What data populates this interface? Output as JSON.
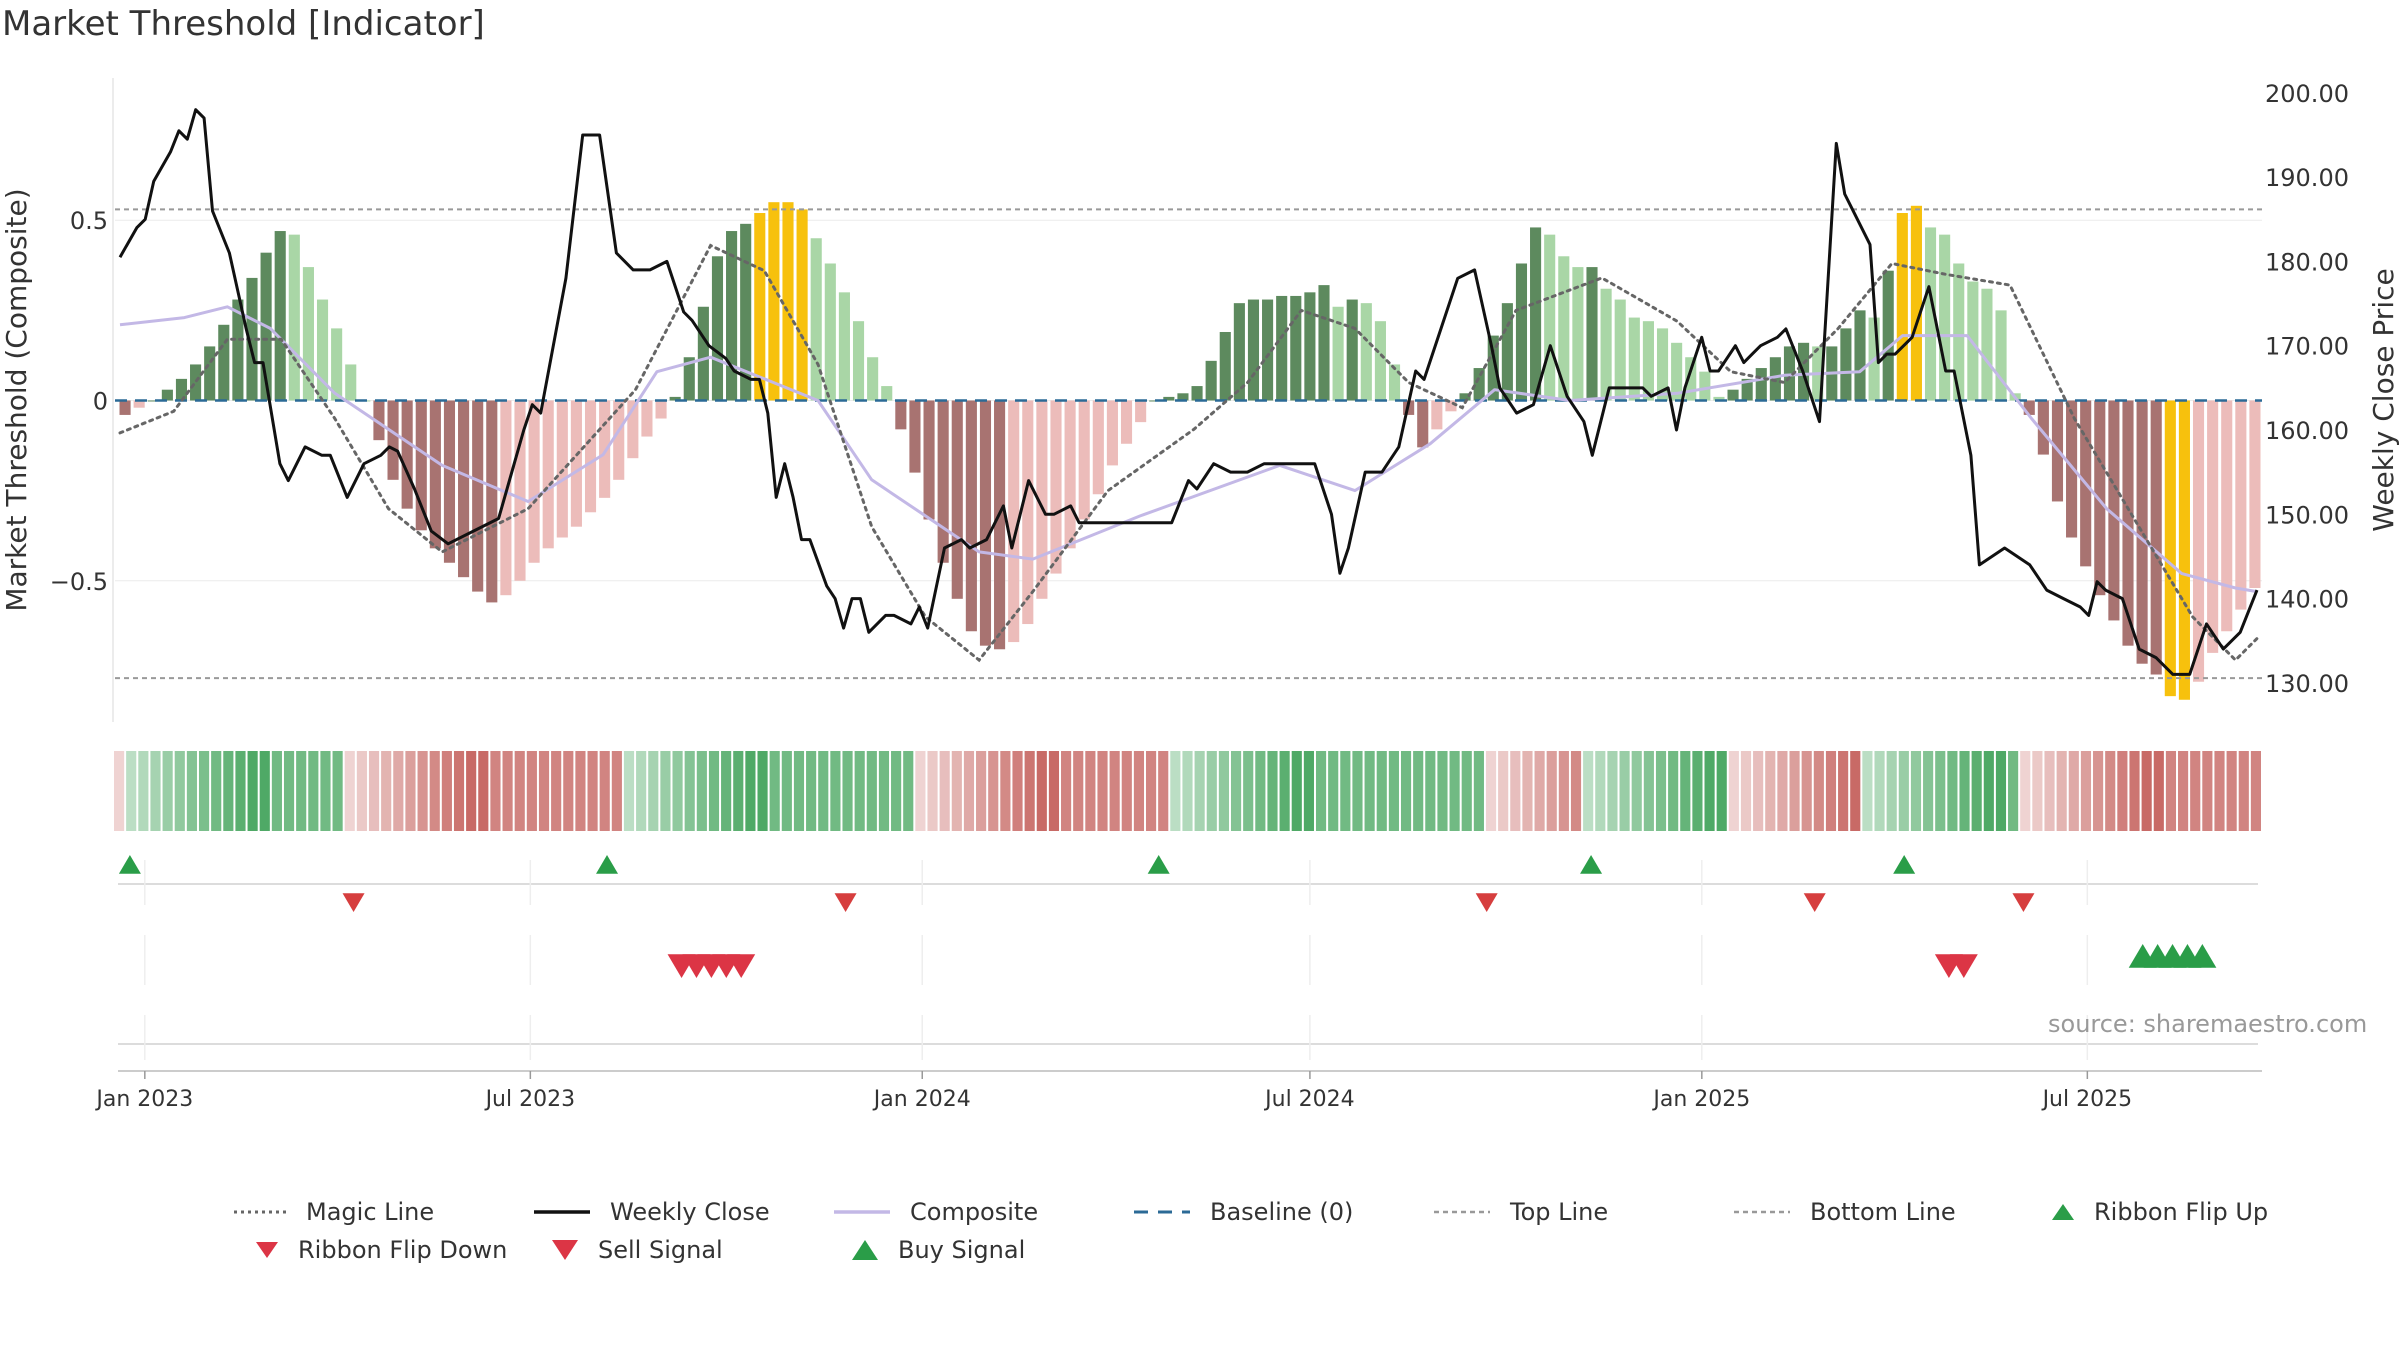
{
  "title": "Market Threshold [Indicator]",
  "source": "source: sharemaestro.com",
  "colors": {
    "up_strong": "#5d8a5e",
    "up_light": "#a9d6a6",
    "down_strong": "#a87371",
    "down_light": "#ecbcba",
    "extreme": "#f7c10d",
    "close": "#111111",
    "composite": "#c3b8e6",
    "magic": "#666666",
    "baseline": "#2b6a96",
    "ref": "#999999",
    "buy": "#2a9d48",
    "sell": "#dc3545"
  },
  "chart_data": {
    "type": "bar+line",
    "x_range": [
      "2022-12-18",
      "2025-09-21"
    ],
    "x_ticks": [
      "Jan 2023",
      "Jul 2023",
      "Jan 2024",
      "Jul 2024",
      "Jan 2025",
      "Jul 2025"
    ],
    "left_axis": {
      "label": "Market Threshold (Composite)",
      "ticks": [
        "0.5",
        "0",
        "−0.5"
      ],
      "range": [
        -0.9,
        0.9
      ]
    },
    "right_axis": {
      "label": "Weekly Close Price",
      "ticks": [
        "200.00",
        "190.00",
        "180.00",
        "170.00",
        "160.00",
        "150.00",
        "140.00",
        "130.00"
      ],
      "range": [
        125,
        202
      ]
    },
    "top_line": 0.53,
    "bottom_line": -0.77,
    "baseline": 0,
    "composite_knots": [
      [
        0,
        0.21
      ],
      [
        6,
        0.23
      ],
      [
        10,
        0.26
      ],
      [
        14,
        0.2
      ],
      [
        20,
        0.02
      ],
      [
        30,
        -0.18
      ],
      [
        38,
        -0.28
      ],
      [
        45,
        -0.15
      ],
      [
        50,
        0.08
      ],
      [
        55,
        0.12
      ],
      [
        65,
        0.0
      ],
      [
        70,
        -0.22
      ],
      [
        80,
        -0.42
      ],
      [
        85,
        -0.44
      ],
      [
        95,
        -0.32
      ],
      [
        108,
        -0.18
      ],
      [
        115,
        -0.25
      ],
      [
        122,
        -0.12
      ],
      [
        128,
        0.03
      ],
      [
        135,
        0.0
      ],
      [
        145,
        0.02
      ],
      [
        155,
        0.07
      ],
      [
        162,
        0.08
      ],
      [
        166,
        0.18
      ],
      [
        172,
        0.18
      ],
      [
        178,
        -0.05
      ],
      [
        185,
        -0.3
      ],
      [
        192,
        -0.48
      ],
      [
        197,
        -0.52
      ],
      [
        199,
        -0.53
      ]
    ],
    "magic_knots": [
      [
        0,
        -0.09
      ],
      [
        5,
        -0.03
      ],
      [
        10,
        0.17
      ],
      [
        15,
        0.17
      ],
      [
        20,
        -0.05
      ],
      [
        25,
        -0.3
      ],
      [
        30,
        -0.42
      ],
      [
        38,
        -0.3
      ],
      [
        48,
        0.03
      ],
      [
        55,
        0.43
      ],
      [
        60,
        0.36
      ],
      [
        65,
        0.1
      ],
      [
        70,
        -0.35
      ],
      [
        75,
        -0.6
      ],
      [
        80,
        -0.72
      ],
      [
        85,
        -0.53
      ],
      [
        92,
        -0.25
      ],
      [
        100,
        -0.08
      ],
      [
        105,
        0.05
      ],
      [
        110,
        0.25
      ],
      [
        115,
        0.2
      ],
      [
        120,
        0.05
      ],
      [
        125,
        -0.02
      ],
      [
        130,
        0.25
      ],
      [
        138,
        0.34
      ],
      [
        145,
        0.22
      ],
      [
        150,
        0.08
      ],
      [
        155,
        0.05
      ],
      [
        160,
        0.2
      ],
      [
        165,
        0.38
      ],
      [
        170,
        0.35
      ],
      [
        176,
        0.32
      ],
      [
        182,
        -0.05
      ],
      [
        188,
        -0.35
      ],
      [
        193,
        -0.6
      ],
      [
        197,
        -0.72
      ],
      [
        199,
        -0.66
      ]
    ],
    "close_knots": [
      [
        0,
        180.5
      ],
      [
        2,
        184
      ],
      [
        3,
        185
      ],
      [
        4,
        189.5
      ],
      [
        6,
        193
      ],
      [
        7,
        195.5
      ],
      [
        8,
        194.5
      ],
      [
        9,
        198
      ],
      [
        10,
        197
      ],
      [
        11,
        186
      ],
      [
        13,
        181
      ],
      [
        15,
        172
      ],
      [
        16,
        168
      ],
      [
        17,
        168
      ],
      [
        19,
        156
      ],
      [
        20,
        154
      ],
      [
        22,
        158
      ],
      [
        24,
        157
      ],
      [
        25,
        157
      ],
      [
        27,
        152
      ],
      [
        29,
        156
      ],
      [
        31,
        157
      ],
      [
        32,
        158
      ],
      [
        33,
        157.5
      ],
      [
        35,
        153
      ],
      [
        37,
        148
      ],
      [
        39,
        146.5
      ],
      [
        42,
        148
      ],
      [
        45,
        149.5
      ],
      [
        48,
        160
      ],
      [
        49,
        163
      ],
      [
        50,
        162
      ],
      [
        53,
        178
      ],
      [
        55,
        195
      ],
      [
        57,
        195
      ],
      [
        59,
        181
      ],
      [
        61,
        179
      ],
      [
        63,
        179
      ],
      [
        65,
        180
      ],
      [
        67,
        174
      ],
      [
        68,
        173
      ],
      [
        70,
        170
      ],
      [
        72,
        168.5
      ],
      [
        73,
        167
      ],
      [
        75,
        166
      ],
      [
        76,
        166
      ],
      [
        77,
        162
      ],
      [
        78,
        152
      ],
      [
        79,
        156
      ],
      [
        80,
        152
      ],
      [
        81,
        147
      ],
      [
        82,
        147
      ],
      [
        84,
        141.5
      ],
      [
        85,
        140
      ],
      [
        86,
        136.5
      ],
      [
        87,
        140
      ],
      [
        88,
        140
      ],
      [
        89,
        136
      ],
      [
        91,
        138
      ],
      [
        92,
        138
      ],
      [
        94,
        137
      ],
      [
        95,
        139
      ],
      [
        96,
        136.5
      ],
      [
        98,
        146
      ],
      [
        100,
        147
      ],
      [
        101,
        146
      ],
      [
        103,
        147
      ],
      [
        105,
        151
      ],
      [
        106,
        146
      ],
      [
        108,
        154
      ],
      [
        110,
        150
      ],
      [
        111,
        150
      ],
      [
        113,
        151
      ],
      [
        114,
        149
      ],
      [
        125,
        149
      ],
      [
        127,
        154
      ],
      [
        128,
        153
      ],
      [
        130,
        156
      ],
      [
        132,
        155
      ],
      [
        134,
        155
      ],
      [
        136,
        156
      ],
      [
        138,
        156
      ],
      [
        140,
        156
      ],
      [
        142,
        156
      ],
      [
        144,
        150
      ],
      [
        145,
        143
      ],
      [
        146,
        146
      ],
      [
        148,
        155
      ],
      [
        150,
        155
      ],
      [
        152,
        158
      ],
      [
        154,
        167
      ],
      [
        155,
        166
      ],
      [
        157,
        172
      ],
      [
        159,
        178
      ],
      [
        161,
        179
      ],
      [
        163,
        170
      ],
      [
        164,
        165
      ],
      [
        166,
        162
      ],
      [
        168,
        163
      ],
      [
        170,
        170
      ],
      [
        172,
        164
      ],
      [
        174,
        161
      ],
      [
        175,
        157
      ],
      [
        177,
        165
      ],
      [
        180,
        165
      ],
      [
        181,
        165
      ],
      [
        182,
        164
      ],
      [
        184,
        165
      ],
      [
        185,
        160
      ],
      [
        186,
        165
      ],
      [
        188,
        171
      ],
      [
        189,
        167
      ],
      [
        190,
        167
      ],
      [
        192,
        170
      ],
      [
        193,
        168
      ],
      [
        194,
        169
      ],
      [
        195,
        170
      ],
      [
        197,
        171
      ],
      [
        198,
        172
      ],
      [
        200,
        167
      ],
      [
        202,
        161
      ],
      [
        204,
        194
      ],
      [
        205,
        188
      ],
      [
        206,
        186
      ],
      [
        208,
        182
      ],
      [
        209,
        168
      ],
      [
        210,
        169
      ],
      [
        211,
        169
      ],
      [
        213,
        171
      ],
      [
        215,
        177
      ],
      [
        217,
        167
      ],
      [
        218,
        167
      ],
      [
        220,
        157
      ],
      [
        221,
        144
      ],
      [
        224,
        146
      ],
      [
        227,
        144
      ],
      [
        229,
        141
      ],
      [
        231,
        140
      ],
      [
        233,
        139
      ],
      [
        234,
        138
      ],
      [
        235,
        142
      ],
      [
        236,
        141
      ],
      [
        238,
        140
      ],
      [
        240,
        134
      ],
      [
        242,
        133
      ],
      [
        244,
        131
      ],
      [
        246,
        131
      ],
      [
        248,
        137
      ],
      [
        250,
        134
      ],
      [
        252,
        136
      ],
      [
        254,
        141
      ]
    ],
    "histogram": [
      -0.04,
      -0.02,
      0.0,
      0.03,
      0.06,
      0.1,
      0.15,
      0.21,
      0.28,
      0.34,
      0.41,
      0.47,
      0.46,
      0.37,
      0.28,
      0.2,
      0.1,
      0.0,
      -0.11,
      -0.22,
      -0.3,
      -0.36,
      -0.41,
      -0.45,
      -0.49,
      -0.53,
      -0.56,
      -0.54,
      -0.5,
      -0.45,
      -0.41,
      -0.38,
      -0.35,
      -0.31,
      -0.27,
      -0.22,
      -0.16,
      -0.1,
      -0.05,
      0.01,
      0.12,
      0.26,
      0.4,
      0.47,
      0.49,
      0.52,
      0.55,
      0.55,
      0.53,
      0.45,
      0.38,
      0.3,
      0.22,
      0.12,
      0.04,
      -0.08,
      -0.2,
      -0.33,
      -0.45,
      -0.55,
      -0.64,
      -0.68,
      -0.69,
      -0.67,
      -0.62,
      -0.55,
      -0.48,
      -0.41,
      -0.33,
      -0.26,
      -0.18,
      -0.12,
      -0.06,
      0.0,
      0.01,
      0.02,
      0.04,
      0.11,
      0.19,
      0.27,
      0.28,
      0.28,
      0.29,
      0.29,
      0.3,
      0.32,
      0.26,
      0.28,
      0.27,
      0.22,
      0.1,
      -0.04,
      -0.13,
      -0.08,
      -0.03,
      0.02,
      0.09,
      0.18,
      0.27,
      0.38,
      0.48,
      0.46,
      0.4,
      0.37,
      0.37,
      0.31,
      0.28,
      0.23,
      0.22,
      0.2,
      0.16,
      0.12,
      0.08,
      0.01,
      0.03,
      0.06,
      0.09,
      0.12,
      0.15,
      0.16,
      0.15,
      0.15,
      0.2,
      0.25,
      0.23,
      0.36,
      0.52,
      0.54,
      0.48,
      0.46,
      0.38,
      0.33,
      0.31,
      0.25,
      0.02,
      -0.04,
      -0.15,
      -0.28,
      -0.38,
      -0.46,
      -0.54,
      -0.61,
      -0.68,
      -0.73,
      -0.76,
      -0.82,
      -0.83,
      -0.78,
      -0.7,
      -0.64,
      -0.58,
      -0.52
    ],
    "ribbon": [
      "ld",
      "u",
      "u",
      "u",
      "u",
      "u",
      "u",
      "u",
      "u",
      "u",
      "u",
      "u",
      "u",
      "u",
      "u",
      "u",
      "u",
      "u",
      "u",
      "d",
      "d",
      "d",
      "d",
      "d",
      "d",
      "d",
      "d",
      "d",
      "d",
      "d",
      "d",
      "d",
      "d",
      "d",
      "d",
      "d",
      "d",
      "d",
      "d",
      "d",
      "d",
      "d",
      "u",
      "u",
      "u",
      "u",
      "u",
      "u",
      "u",
      "u",
      "u",
      "u",
      "u",
      "u",
      "u",
      "u",
      "u",
      "u",
      "u",
      "u",
      "u",
      "u",
      "u",
      "u",
      "u",
      "u",
      "d",
      "d",
      "d",
      "d",
      "d",
      "d",
      "d",
      "d",
      "d",
      "d",
      "d",
      "d",
      "d",
      "d",
      "d",
      "d",
      "d",
      "d",
      "d",
      "d",
      "d",
      "u",
      "u",
      "u",
      "u",
      "u",
      "u",
      "u",
      "u",
      "u",
      "u",
      "u",
      "u",
      "u",
      "u",
      "u",
      "u",
      "u",
      "u",
      "u",
      "u",
      "u",
      "u",
      "u",
      "u",
      "u",
      "u",
      "d",
      "d",
      "d",
      "d",
      "d",
      "d",
      "d",
      "d",
      "u",
      "u",
      "u",
      "u",
      "u",
      "u",
      "u",
      "u",
      "u",
      "u",
      "u",
      "u",
      "d",
      "d",
      "d",
      "d",
      "d",
      "d",
      "d",
      "d",
      "d",
      "d",
      "d",
      "u",
      "u",
      "u",
      "u",
      "u",
      "u",
      "u",
      "u",
      "u",
      "u",
      "u",
      "u",
      "u",
      "d",
      "d",
      "d",
      "d",
      "d",
      "d",
      "d",
      "d",
      "d",
      "d",
      "d",
      "d",
      "d",
      "d",
      "d",
      "d",
      "d",
      "d",
      "d",
      "d"
    ],
    "ribbon_flip_up": [
      "2022-12-25",
      "2023-08-06",
      "2024-04-21",
      "2024-11-10",
      "2025-04-06"
    ],
    "ribbon_flip_down": [
      "2023-04-09",
      "2023-11-26",
      "2024-09-22",
      "2025-02-23",
      "2025-06-01"
    ],
    "sell_signals": [
      "2023-09-10",
      "2023-09-17",
      "2023-09-24",
      "2023-10-01",
      "2023-10-08",
      "2025-04-27",
      "2025-05-04"
    ],
    "buy_signals": [
      "2025-07-27",
      "2025-08-03",
      "2025-08-10",
      "2025-08-17",
      "2025-08-24"
    ]
  },
  "legend": [
    {
      "label": "Magic Line",
      "icon": "dotted-line"
    },
    {
      "label": "Weekly Close",
      "icon": "solid-line"
    },
    {
      "label": "Composite",
      "icon": "purple-line"
    },
    {
      "label": "Baseline (0)",
      "icon": "dashed-blue-line"
    },
    {
      "label": "Top Line",
      "icon": "dashed-grey-line"
    },
    {
      "label": "Bottom Line",
      "icon": "dashed-grey-line"
    },
    {
      "label": "Ribbon Flip Up",
      "icon": "triangle-up-green"
    },
    {
      "label": "Ribbon Flip Down",
      "icon": "triangle-down-red"
    },
    {
      "label": "Sell Signal",
      "icon": "triangle-down-red"
    },
    {
      "label": "Buy Signal",
      "icon": "triangle-up-green"
    }
  ]
}
